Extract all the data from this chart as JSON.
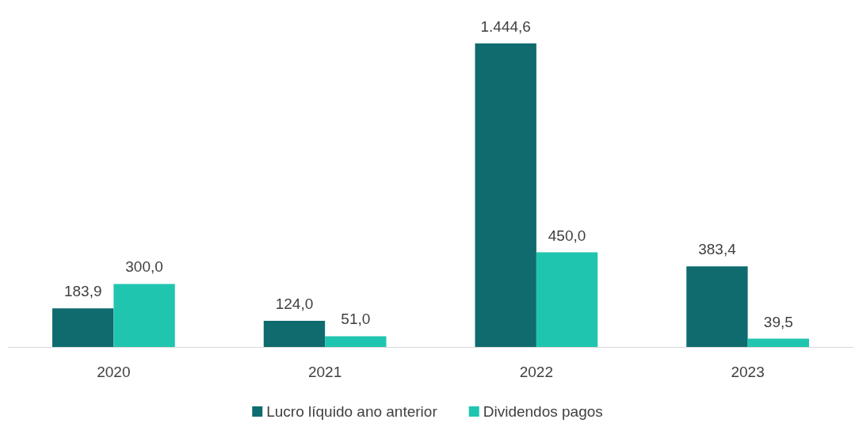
{
  "chart_data": {
    "type": "bar",
    "categories": [
      "2020",
      "2021",
      "2022",
      "2023"
    ],
    "series": [
      {
        "name": "Lucro líquido ano anterior",
        "color": "#0f6b6e",
        "values": [
          183.9,
          124.0,
          1444.6,
          383.4
        ],
        "value_labels": [
          "183,9",
          "124,0",
          "1.444,6",
          "383,4"
        ]
      },
      {
        "name": "Dividendos pagos",
        "color": "#20c5b0",
        "values": [
          300.0,
          51.0,
          450.0,
          39.5
        ],
        "value_labels": [
          "300,0",
          "51,0",
          "450,0",
          "39,5"
        ]
      }
    ],
    "grid": false,
    "legend": "bottom"
  }
}
